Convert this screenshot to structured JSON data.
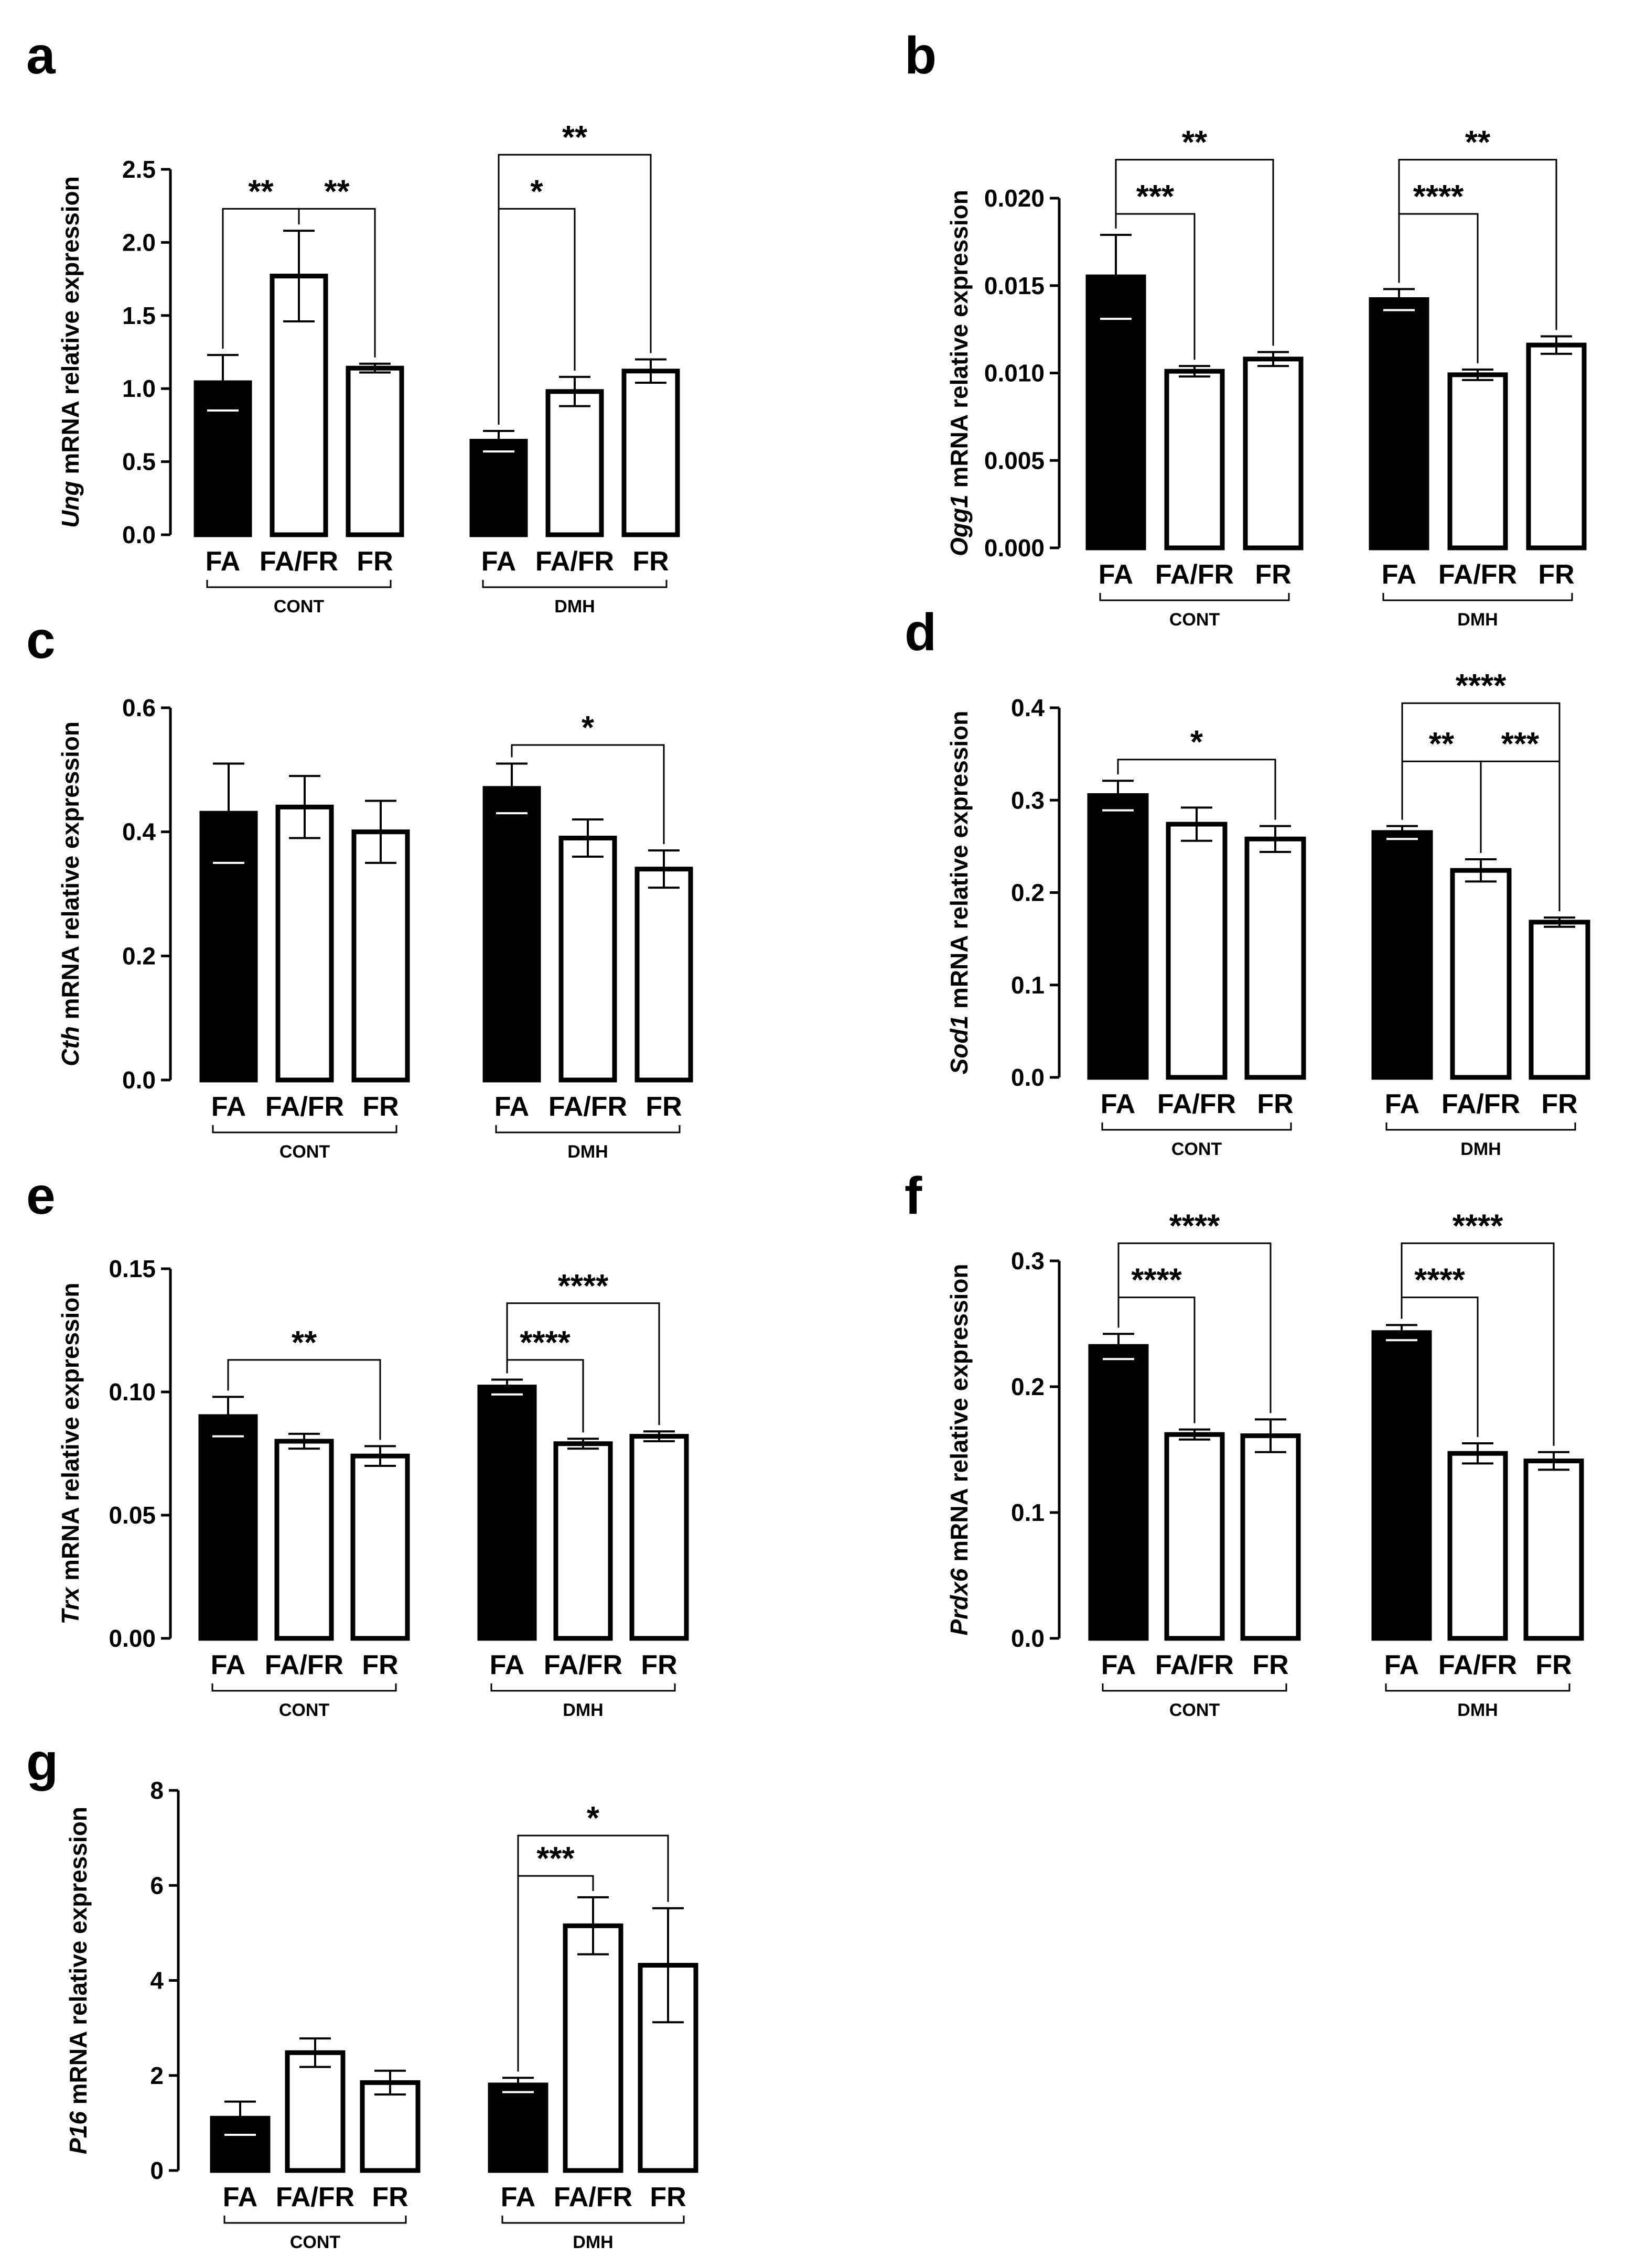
{
  "chart_data": [
    {
      "panel": "a",
      "type": "bar",
      "gene": "Ung",
      "ylabel_suffix": " mRNA relative expression",
      "yticks": [
        "0.0",
        "0.5",
        "1.0",
        "1.5",
        "2.0",
        "2.5"
      ],
      "ylim": [
        0,
        2.5
      ],
      "groups": [
        {
          "label": "CONT",
          "categories": [
            "FA",
            "FA/FR",
            "FR"
          ],
          "values": [
            1.04,
            1.77,
            1.14
          ],
          "errors": [
            0.19,
            0.31,
            0.03
          ]
        },
        {
          "label": "DMH",
          "categories": [
            "FA",
            "FA/FR",
            "FR"
          ],
          "values": [
            0.64,
            0.98,
            1.12
          ],
          "errors": [
            0.07,
            0.1,
            0.08
          ]
        }
      ],
      "bar_fills": [
        "black",
        "white",
        "white"
      ],
      "significance": [
        {
          "group": 0,
          "from": 0,
          "to": 1,
          "label": "**",
          "level": 2.23
        },
        {
          "group": 0,
          "from": 1,
          "to": 2,
          "label": "**",
          "level": 2.23
        },
        {
          "group": 1,
          "from": 0,
          "to": 1,
          "label": "*",
          "level": 2.23
        },
        {
          "group": 1,
          "from": 0,
          "to": 2,
          "label": "**",
          "level": 2.6
        }
      ]
    },
    {
      "panel": "b",
      "type": "bar",
      "gene": "Ogg1",
      "ylabel_suffix": " mRNA relative expression",
      "yticks": [
        "0.000",
        "0.005",
        "0.010",
        "0.015",
        "0.020"
      ],
      "ylim": [
        0,
        0.02
      ],
      "groups": [
        {
          "label": "CONT",
          "categories": [
            "FA",
            "FA/FR",
            "FR"
          ],
          "values": [
            0.0155,
            0.0101,
            0.0108
          ],
          "errors": [
            0.0024,
            0.0003,
            0.0004
          ]
        },
        {
          "label": "DMH",
          "categories": [
            "FA",
            "FA/FR",
            "FR"
          ],
          "values": [
            0.0142,
            0.0099,
            0.0116
          ],
          "errors": [
            0.0006,
            0.0003,
            0.0005
          ]
        }
      ],
      "bar_fills": [
        "black",
        "white",
        "white"
      ],
      "significance": [
        {
          "group": 0,
          "from": 0,
          "to": 1,
          "label": "***",
          "level": 0.0191
        },
        {
          "group": 0,
          "from": 0,
          "to": 2,
          "label": "**",
          "level": 0.0222
        },
        {
          "group": 1,
          "from": 0,
          "to": 1,
          "label": "****",
          "level": 0.0191
        },
        {
          "group": 1,
          "from": 0,
          "to": 2,
          "label": "**",
          "level": 0.0222
        }
      ]
    },
    {
      "panel": "c",
      "type": "bar",
      "gene": "Cth",
      "ylabel_suffix": " mRNA relative expression",
      "yticks": [
        "0.0",
        "0.2",
        "0.4",
        "0.6"
      ],
      "ylim": [
        0,
        0.6
      ],
      "groups": [
        {
          "label": "CONT",
          "categories": [
            "FA",
            "FA/FR",
            "FR"
          ],
          "values": [
            0.43,
            0.44,
            0.4
          ],
          "errors": [
            0.08,
            0.05,
            0.05
          ]
        },
        {
          "label": "DMH",
          "categories": [
            "FA",
            "FA/FR",
            "FR"
          ],
          "values": [
            0.47,
            0.39,
            0.34
          ],
          "errors": [
            0.04,
            0.03,
            0.03
          ]
        }
      ],
      "bar_fills": [
        "black",
        "white",
        "white"
      ],
      "significance": [
        {
          "group": 1,
          "from": 0,
          "to": 2,
          "label": "*",
          "level": 0.54
        }
      ]
    },
    {
      "panel": "d",
      "type": "bar",
      "gene": "Sod1",
      "ylabel_suffix": " mRNA relative expression",
      "yticks": [
        "0.0",
        "0.1",
        "0.2",
        "0.3",
        "0.4"
      ],
      "ylim": [
        0,
        0.4
      ],
      "groups": [
        {
          "label": "CONT",
          "categories": [
            "FA",
            "FA/FR",
            "FR"
          ],
          "values": [
            0.305,
            0.274,
            0.258
          ],
          "errors": [
            0.016,
            0.018,
            0.014
          ]
        },
        {
          "label": "DMH",
          "categories": [
            "FA",
            "FA/FR",
            "FR"
          ],
          "values": [
            0.265,
            0.224,
            0.168
          ],
          "errors": [
            0.007,
            0.012,
            0.005
          ]
        }
      ],
      "bar_fills": [
        "black",
        "white",
        "white"
      ],
      "significance": [
        {
          "group": 0,
          "from": 0,
          "to": 2,
          "label": "*",
          "level": 0.344
        },
        {
          "group": 1,
          "from": 0,
          "to": 1,
          "label": "**",
          "level": 0.342
        },
        {
          "group": 1,
          "from": 1,
          "to": 2,
          "label": "***",
          "level": 0.342
        },
        {
          "group": 1,
          "from": 0,
          "to": 2,
          "label": "****",
          "level": 0.405
        }
      ]
    },
    {
      "panel": "e",
      "type": "bar",
      "gene": "Trx",
      "ylabel_suffix": " mRNA relative expression",
      "yticks": [
        "0.00",
        "0.05",
        "0.10",
        "0.15"
      ],
      "ylim": [
        0,
        0.15
      ],
      "groups": [
        {
          "label": "CONT",
          "categories": [
            "FA",
            "FA/FR",
            "FR"
          ],
          "values": [
            0.09,
            0.08,
            0.074
          ],
          "errors": [
            0.008,
            0.003,
            0.004
          ]
        },
        {
          "label": "DMH",
          "categories": [
            "FA",
            "FA/FR",
            "FR"
          ],
          "values": [
            0.102,
            0.079,
            0.082
          ],
          "errors": [
            0.003,
            0.002,
            0.002
          ]
        }
      ],
      "bar_fills": [
        "black",
        "white",
        "white"
      ],
      "significance": [
        {
          "group": 0,
          "from": 0,
          "to": 2,
          "label": "**",
          "level": 0.113
        },
        {
          "group": 1,
          "from": 0,
          "to": 1,
          "label": "****",
          "level": 0.113
        },
        {
          "group": 1,
          "from": 0,
          "to": 2,
          "label": "****",
          "level": 0.136
        }
      ]
    },
    {
      "panel": "f",
      "type": "bar",
      "gene": "Prdx6",
      "ylabel_suffix": " mRNA relative expression",
      "yticks": [
        "0.0",
        "0.1",
        "0.2",
        "0.3"
      ],
      "ylim": [
        0,
        0.3
      ],
      "groups": [
        {
          "label": "CONT",
          "categories": [
            "FA",
            "FA/FR",
            "FR"
          ],
          "values": [
            0.232,
            0.162,
            0.161
          ],
          "errors": [
            0.01,
            0.004,
            0.013
          ]
        },
        {
          "label": "DMH",
          "categories": [
            "FA",
            "FA/FR",
            "FR"
          ],
          "values": [
            0.243,
            0.147,
            0.141
          ],
          "errors": [
            0.006,
            0.008,
            0.007
          ]
        }
      ],
      "bar_fills": [
        "black",
        "white",
        "white"
      ],
      "significance": [
        {
          "group": 0,
          "from": 0,
          "to": 1,
          "label": "****",
          "level": 0.271
        },
        {
          "group": 0,
          "from": 0,
          "to": 2,
          "label": "****",
          "level": 0.314
        },
        {
          "group": 1,
          "from": 0,
          "to": 1,
          "label": "****",
          "level": 0.271
        },
        {
          "group": 1,
          "from": 0,
          "to": 2,
          "label": "****",
          "level": 0.314
        }
      ]
    },
    {
      "panel": "g",
      "type": "bar",
      "gene": "P16",
      "ylabel_suffix": " mRNA relative expression",
      "yticks": [
        "0",
        "2",
        "4",
        "6",
        "8"
      ],
      "ylim": [
        0,
        8
      ],
      "groups": [
        {
          "label": "CONT",
          "categories": [
            "FA",
            "FA/FR",
            "FR"
          ],
          "values": [
            1.1,
            2.48,
            1.85
          ],
          "errors": [
            0.35,
            0.3,
            0.25
          ]
        },
        {
          "label": "DMH",
          "categories": [
            "FA",
            "FA/FR",
            "FR"
          ],
          "values": [
            1.8,
            5.15,
            4.32
          ],
          "errors": [
            0.15,
            0.6,
            1.2
          ]
        }
      ],
      "bar_fills": [
        "black",
        "white",
        "white"
      ],
      "significance": [
        {
          "group": 1,
          "from": 0,
          "to": 1,
          "label": "***",
          "level": 6.2
        },
        {
          "group": 1,
          "from": 0,
          "to": 2,
          "label": "*",
          "level": 7.05
        }
      ]
    }
  ]
}
